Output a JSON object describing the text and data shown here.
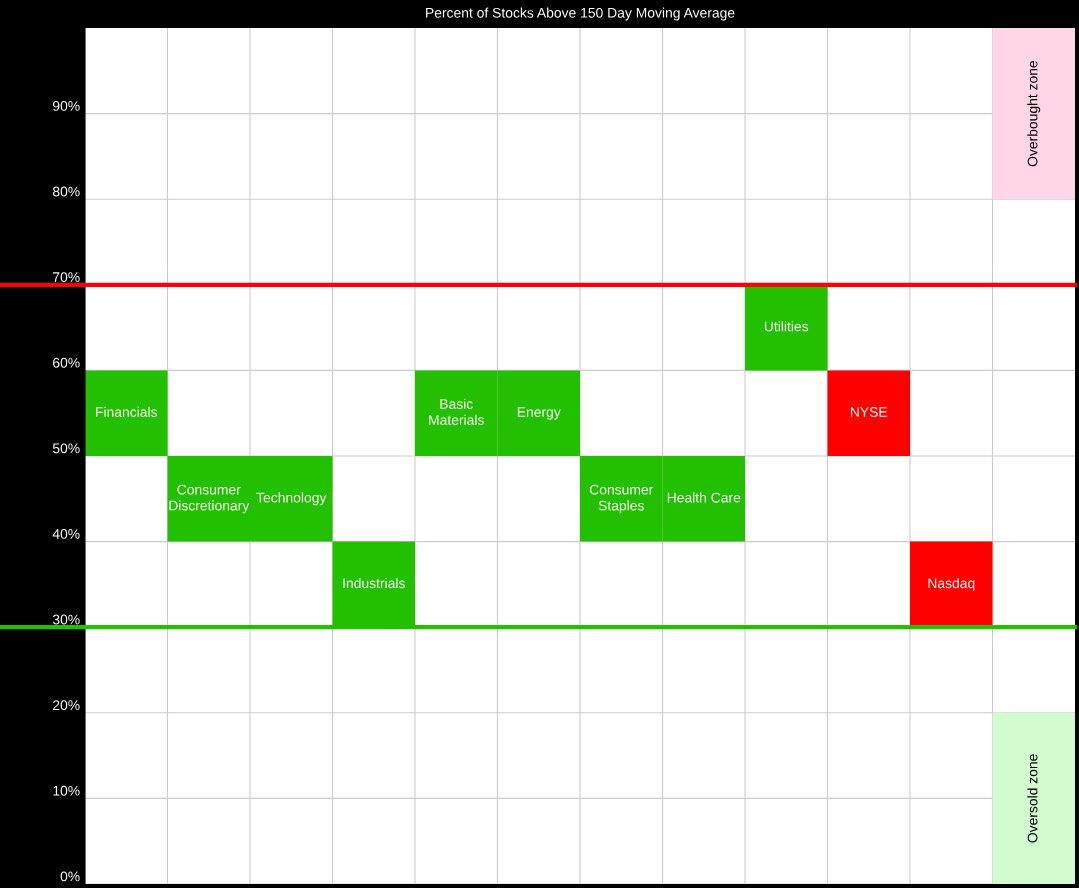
{
  "chart_data": {
    "type": "bar",
    "title": "Percent of Stocks Above 150 Day Moving Average",
    "categories": [
      "Financials",
      "Consumer\nDiscretionary",
      "Technology",
      "Industrials",
      "Basic\nMaterials",
      "Energy",
      "Consumer\nStaples",
      "Health Care",
      "Utilities",
      "NYSE",
      "Nasdaq",
      null
    ],
    "series": [
      {
        "base": [
          50,
          40,
          40,
          30,
          50,
          50,
          40,
          40,
          60,
          50,
          30,
          null
        ],
        "values": [
          10,
          10,
          10,
          10,
          10,
          10,
          10,
          10,
          10,
          10,
          10,
          null
        ],
        "colors": [
          "#22c000",
          "#22c000",
          "#22c000",
          "#22c000",
          "#22c000",
          "#22c000",
          "#22c000",
          "#22c000",
          "#22c000",
          "#ff0000",
          "#ff0000",
          null
        ]
      },
      {
        "name": "Overbought zone",
        "color": "#ffd6e6",
        "base": [
          null,
          null,
          null,
          null,
          null,
          null,
          null,
          null,
          null,
          null,
          null,
          80
        ],
        "values": [
          null,
          null,
          null,
          null,
          null,
          null,
          null,
          null,
          null,
          null,
          null,
          20
        ]
      },
      {
        "name": "Oversold zone",
        "color": "#d2fcd0",
        "base": [
          null,
          null,
          null,
          null,
          null,
          null,
          null,
          null,
          null,
          null,
          null,
          0
        ],
        "values": [
          null,
          null,
          null,
          null,
          null,
          null,
          null,
          null,
          null,
          null,
          null,
          20
        ]
      }
    ],
    "ylim": [
      0,
      100
    ],
    "yticks": [
      {
        "value": 0,
        "label": "0%"
      },
      {
        "value": 10,
        "label": "10%"
      },
      {
        "value": 20,
        "label": "20%"
      },
      {
        "value": 30,
        "label": "30%"
      },
      {
        "value": 40,
        "label": "40%"
      },
      {
        "value": 50,
        "label": "50%"
      },
      {
        "value": 60,
        "label": "60%"
      },
      {
        "value": 70,
        "label": "70%"
      },
      {
        "value": 80,
        "label": "80%"
      },
      {
        "value": 90,
        "label": "90%"
      }
    ],
    "ref_lines": [
      {
        "axis": "y",
        "value": 70,
        "color": "#ff0000"
      },
      {
        "axis": "y",
        "value": 30,
        "color": "#22c000"
      }
    ],
    "grid": true,
    "tick_labels": "y"
  }
}
